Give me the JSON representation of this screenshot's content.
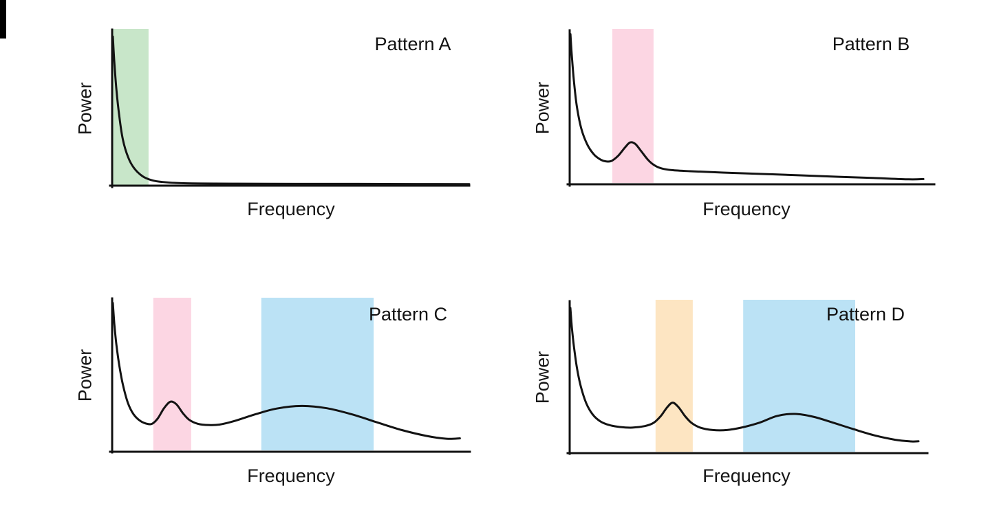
{
  "figure": {
    "background": "#ffffff",
    "curve_color": "#131313",
    "axis_color": "#111111"
  },
  "chart_data": [
    {
      "type": "line",
      "title": "Pattern A",
      "xlabel": "Frequency",
      "ylabel": "Power",
      "x_range": [
        0,
        1
      ],
      "y_range": [
        0,
        1
      ],
      "grid": false,
      "legend": null,
      "curve": [
        [
          0.002,
          0.96
        ],
        [
          0.006,
          0.8
        ],
        [
          0.012,
          0.62
        ],
        [
          0.02,
          0.45
        ],
        [
          0.03,
          0.3
        ],
        [
          0.045,
          0.185
        ],
        [
          0.062,
          0.115
        ],
        [
          0.085,
          0.065
        ],
        [
          0.11,
          0.04
        ],
        [
          0.14,
          0.028
        ],
        [
          0.2,
          0.02
        ],
        [
          0.35,
          0.017
        ],
        [
          0.6,
          0.016
        ],
        [
          0.85,
          0.015
        ],
        [
          1.0,
          0.014
        ]
      ],
      "bands": [
        {
          "color": "#C8E6C9",
          "x0": 0.002,
          "x1": 0.102
        }
      ]
    },
    {
      "type": "line",
      "title": "Pattern B",
      "xlabel": "Frequency",
      "ylabel": "Power",
      "x_range": [
        0,
        1
      ],
      "y_range": [
        0,
        1
      ],
      "grid": false,
      "legend": null,
      "curve": [
        [
          0.002,
          0.975
        ],
        [
          0.006,
          0.83
        ],
        [
          0.012,
          0.66
        ],
        [
          0.02,
          0.5
        ],
        [
          0.032,
          0.36
        ],
        [
          0.048,
          0.26
        ],
        [
          0.066,
          0.195
        ],
        [
          0.085,
          0.16
        ],
        [
          0.1,
          0.148
        ],
        [
          0.115,
          0.152
        ],
        [
          0.133,
          0.185
        ],
        [
          0.152,
          0.24
        ],
        [
          0.166,
          0.272
        ],
        [
          0.18,
          0.262
        ],
        [
          0.196,
          0.215
        ],
        [
          0.215,
          0.158
        ],
        [
          0.232,
          0.124
        ],
        [
          0.252,
          0.103
        ],
        [
          0.28,
          0.092
        ],
        [
          0.33,
          0.085
        ],
        [
          0.42,
          0.076
        ],
        [
          0.55,
          0.065
        ],
        [
          0.7,
          0.052
        ],
        [
          0.84,
          0.04
        ],
        [
          0.93,
          0.032
        ],
        [
          0.97,
          0.034
        ]
      ],
      "bands": [
        {
          "color": "#FCD6E3",
          "x0": 0.117,
          "x1": 0.23
        }
      ]
    },
    {
      "type": "line",
      "title": "Pattern C",
      "xlabel": "Frequency",
      "ylabel": "Power",
      "x_range": [
        0,
        1
      ],
      "y_range": [
        0,
        1
      ],
      "grid": false,
      "legend": null,
      "curve": [
        [
          0.002,
          0.975
        ],
        [
          0.006,
          0.84
        ],
        [
          0.012,
          0.7
        ],
        [
          0.02,
          0.565
        ],
        [
          0.03,
          0.44
        ],
        [
          0.044,
          0.32
        ],
        [
          0.06,
          0.245
        ],
        [
          0.08,
          0.2
        ],
        [
          0.1,
          0.182
        ],
        [
          0.113,
          0.185
        ],
        [
          0.128,
          0.22
        ],
        [
          0.145,
          0.285
        ],
        [
          0.163,
          0.328
        ],
        [
          0.18,
          0.31
        ],
        [
          0.197,
          0.255
        ],
        [
          0.215,
          0.21
        ],
        [
          0.24,
          0.183
        ],
        [
          0.27,
          0.175
        ],
        [
          0.3,
          0.178
        ],
        [
          0.34,
          0.2
        ],
        [
          0.4,
          0.245
        ],
        [
          0.46,
          0.283
        ],
        [
          0.53,
          0.3
        ],
        [
          0.6,
          0.285
        ],
        [
          0.67,
          0.245
        ],
        [
          0.74,
          0.193
        ],
        [
          0.81,
          0.142
        ],
        [
          0.88,
          0.103
        ],
        [
          0.935,
          0.085
        ],
        [
          0.972,
          0.088
        ]
      ],
      "bands": [
        {
          "color": "#FCD6E3",
          "x0": 0.115,
          "x1": 0.221
        },
        {
          "color": "#BBE2F5",
          "x0": 0.417,
          "x1": 0.731
        }
      ]
    },
    {
      "type": "line",
      "title": "Pattern D",
      "xlabel": "Frequency",
      "ylabel": "Power",
      "x_range": [
        0,
        1
      ],
      "y_range": [
        0,
        1
      ],
      "grid": false,
      "legend": null,
      "curve": [
        [
          0.002,
          0.955
        ],
        [
          0.006,
          0.83
        ],
        [
          0.012,
          0.7
        ],
        [
          0.02,
          0.565
        ],
        [
          0.031,
          0.44
        ],
        [
          0.046,
          0.33
        ],
        [
          0.064,
          0.255
        ],
        [
          0.085,
          0.21
        ],
        [
          0.11,
          0.185
        ],
        [
          0.14,
          0.172
        ],
        [
          0.175,
          0.168
        ],
        [
          0.21,
          0.178
        ],
        [
          0.235,
          0.2
        ],
        [
          0.255,
          0.245
        ],
        [
          0.272,
          0.3
        ],
        [
          0.288,
          0.332
        ],
        [
          0.305,
          0.3
        ],
        [
          0.322,
          0.245
        ],
        [
          0.34,
          0.2
        ],
        [
          0.365,
          0.168
        ],
        [
          0.4,
          0.152
        ],
        [
          0.44,
          0.152
        ],
        [
          0.48,
          0.168
        ],
        [
          0.53,
          0.2
        ],
        [
          0.58,
          0.245
        ],
        [
          0.63,
          0.258
        ],
        [
          0.68,
          0.24
        ],
        [
          0.73,
          0.205
        ],
        [
          0.79,
          0.16
        ],
        [
          0.85,
          0.118
        ],
        [
          0.91,
          0.088
        ],
        [
          0.955,
          0.077
        ],
        [
          0.975,
          0.078
        ]
      ],
      "bands": [
        {
          "color": "#FDE5C2",
          "x0": 0.24,
          "x1": 0.344
        },
        {
          "color": "#BBE2F5",
          "x0": 0.485,
          "x1": 0.798
        }
      ]
    }
  ]
}
